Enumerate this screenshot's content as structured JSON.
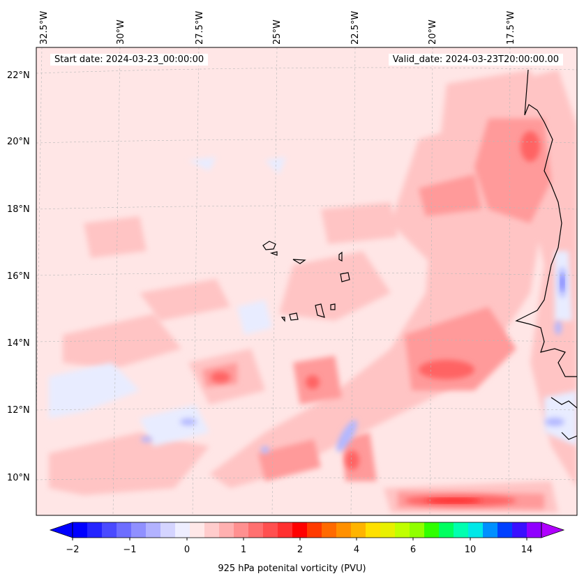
{
  "header": {
    "start_date": "Start date: 2024-03-23_00:00:00",
    "valid_date": "Valid_date: 2024-03-23T20:00:00.00"
  },
  "map": {
    "lon_labels": [
      "32.5°W",
      "30°W",
      "27.5°W",
      "25°W",
      "22.5°W",
      "20°W",
      "17.5°W"
    ],
    "lat_labels": [
      "22°N",
      "20°N",
      "18°N",
      "16°N",
      "14°N",
      "12°N",
      "10°N"
    ],
    "field_colors": {
      "background": "#ffe6e6",
      "light_red": "#ffc4c4",
      "mid_red": "#ff9a9a",
      "strong_red": "#ff6464",
      "max_red": "#ff2a2a",
      "light_blue": "#e8ecff",
      "mid_blue": "#b3b8ff",
      "strong_blue": "#7a80ff"
    }
  },
  "colorbar": {
    "label": "925 hPa potenital vorticity (PVU)",
    "tick_labels": [
      "−2",
      "−1",
      "0",
      "1",
      "2",
      "4",
      "6",
      "10",
      "14"
    ],
    "colors": [
      "#0000ff",
      "#2424ff",
      "#4a4aff",
      "#6e6eff",
      "#9090ff",
      "#b2b2ff",
      "#d4d4ff",
      "#eeeeff",
      "#ffe8e8",
      "#ffcccc",
      "#ffb0b0",
      "#ff9090",
      "#ff7070",
      "#ff5050",
      "#ff3030",
      "#ff0000",
      "#ff3a00",
      "#ff6a00",
      "#ff9000",
      "#ffb400",
      "#ffe000",
      "#e8f000",
      "#c0ff00",
      "#90ff00",
      "#30ff00",
      "#00ff60",
      "#00ffb0",
      "#00e8e8",
      "#0090ff",
      "#0040ff",
      "#3a10ff",
      "#9000ff"
    ],
    "under_color": "#0000ff",
    "over_color": "#b000ff"
  }
}
